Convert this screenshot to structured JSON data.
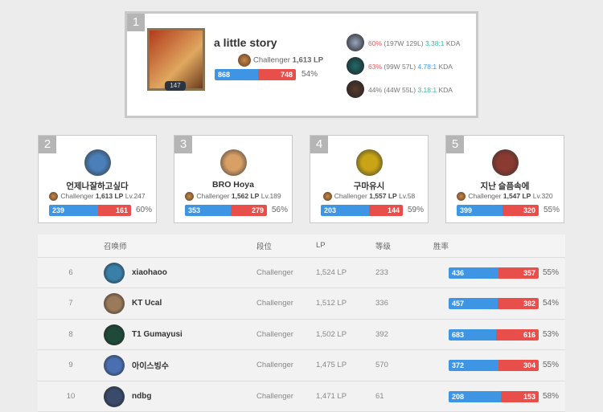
{
  "top": {
    "rank": "1",
    "name": "a little story",
    "level": "147",
    "tier": "Challenger",
    "lp": "1,613 LP",
    "wins": "868",
    "losses": "748",
    "winrate": "54%",
    "winrate_value": 54,
    "champions": [
      {
        "wr": "60%",
        "record": "(197W 129L)",
        "kda": "3.38:1",
        "kda_suffix": "KDA",
        "wr_color": "#e05a5a",
        "kda_color": "#3bb89a",
        "icon_color": "#9aa6c0"
      },
      {
        "wr": "63%",
        "record": "(99W 57L)",
        "kda": "4.78:1",
        "kda_suffix": "KDA",
        "wr_color": "#e05a5a",
        "kda_color": "#3d95e4",
        "icon_color": "#1f6b6a"
      },
      {
        "wr": "44%",
        "record": "(44W 55L)",
        "kda": "3.18:1",
        "kda_suffix": "KDA",
        "wr_color": "#777777",
        "kda_color": "#3bb89a",
        "icon_color": "#5a3b2c"
      }
    ]
  },
  "cards": [
    {
      "rank": "2",
      "name": "언제나잘하고싶다",
      "tier": "Challenger",
      "lp": "1,613 LP",
      "level": "Lv.247",
      "wins": "239",
      "losses": "161",
      "winrate": "60%",
      "icon_color": "#4a7fb8"
    },
    {
      "rank": "3",
      "name": "BRO Hoya",
      "tier": "Challenger",
      "lp": "1,562 LP",
      "level": "Lv.189",
      "wins": "353",
      "losses": "279",
      "winrate": "56%",
      "icon_color": "#d9a066"
    },
    {
      "rank": "4",
      "name": "구마유시",
      "tier": "Challenger",
      "lp": "1,557 LP",
      "level": "Lv.58",
      "wins": "203",
      "losses": "144",
      "winrate": "59%",
      "icon_color": "#c9a515"
    },
    {
      "rank": "5",
      "name": "지난 슬픔속에",
      "tier": "Challenger",
      "lp": "1,547 LP",
      "level": "Lv.320",
      "wins": "399",
      "losses": "320",
      "winrate": "55%",
      "icon_color": "#8a3a30"
    }
  ],
  "table": {
    "headers": [
      "召唤师",
      "段位",
      "LP",
      "等级",
      "胜率"
    ],
    "rows": [
      {
        "rank": "6",
        "name": "xiaohaoo",
        "tier": "Challenger",
        "lp": "1,524 LP",
        "level": "233",
        "wins": "436",
        "losses": "357",
        "winrate": "55%",
        "icon_color": "#3a7fa8"
      },
      {
        "rank": "7",
        "name": "KT Ucal",
        "tier": "Challenger",
        "lp": "1,512 LP",
        "level": "336",
        "wins": "457",
        "losses": "382",
        "winrate": "54%",
        "icon_color": "#9a7a5a"
      },
      {
        "rank": "8",
        "name": "T1 Gumayusi",
        "tier": "Challenger",
        "lp": "1,502 LP",
        "level": "392",
        "wins": "683",
        "losses": "616",
        "winrate": "53%",
        "icon_color": "#1f4a3a"
      },
      {
        "rank": "9",
        "name": "아이스빙수",
        "tier": "Challenger",
        "lp": "1,475 LP",
        "level": "570",
        "wins": "372",
        "losses": "304",
        "winrate": "55%",
        "icon_color": "#4a6fb0"
      },
      {
        "rank": "10",
        "name": "ndbg",
        "tier": "Challenger",
        "lp": "1,471 LP",
        "level": "61",
        "wins": "208",
        "losses": "153",
        "winrate": "58%",
        "icon_color": "#3a4a6a"
      }
    ]
  }
}
